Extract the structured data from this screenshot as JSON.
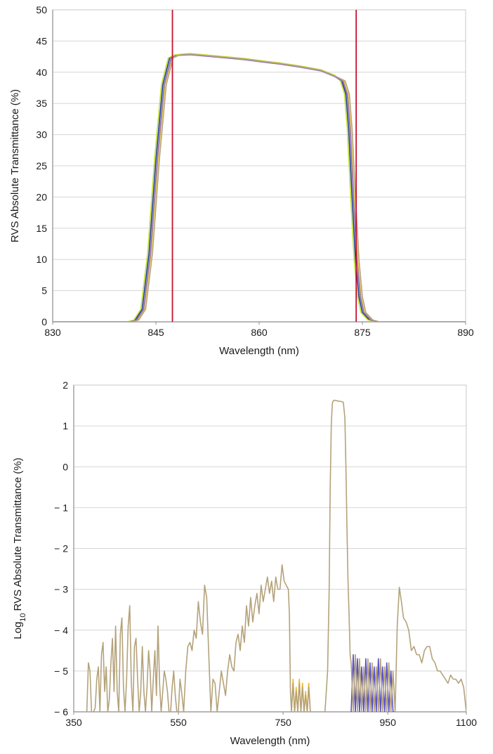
{
  "chart_data": [
    {
      "type": "line",
      "xlabel": "Wavelength (nm)",
      "ylabel": "RVS Absolute Transmittance (%)",
      "xlim": [
        830,
        890
      ],
      "ylim": [
        0,
        50
      ],
      "x_ticks": [
        830,
        845,
        860,
        875,
        890
      ],
      "y_ticks": [
        0,
        5,
        10,
        15,
        20,
        25,
        30,
        35,
        40,
        45,
        50
      ],
      "x_tick_labels": [
        "830",
        "845",
        "860",
        "875",
        "890"
      ],
      "y_tick_labels": [
        "0",
        "5",
        "10",
        "15",
        "20",
        "25",
        "30",
        "35",
        "40",
        "45",
        "50"
      ],
      "grid": "horizontal",
      "vertical_markers": [
        {
          "x": 847.4,
          "color": "#c8102e"
        },
        {
          "x": 874.1,
          "color": "#c8102e"
        }
      ],
      "series": [
        {
          "color": "#1f3f8f",
          "x": [
            830,
            841,
            842,
            843,
            844,
            845,
            846,
            847,
            848,
            850,
            852,
            855,
            858,
            860,
            863,
            866,
            869,
            871,
            872,
            872.6,
            873,
            873.5,
            874,
            874.5,
            875,
            876,
            877,
            890
          ],
          "values": [
            0,
            0,
            0.3,
            2,
            11,
            26,
            38,
            42.3,
            42.8,
            42.9,
            42.7,
            42.4,
            42.1,
            41.8,
            41.4,
            40.9,
            40.3,
            39.4,
            38.6,
            36.5,
            31,
            20,
            10,
            4,
            1.5,
            0.3,
            0,
            0
          ]
        },
        {
          "color": "#e8c02a",
          "x": [
            830,
            841,
            842.3,
            843.3,
            844.3,
            845.3,
            846.3,
            847.3,
            848.3,
            850,
            852,
            855,
            858,
            860,
            863,
            866,
            869,
            871,
            872.3,
            872.9,
            873.3,
            873.8,
            874.3,
            874.8,
            875.3,
            876.3,
            877.3,
            890
          ],
          "values": [
            0,
            0,
            0.3,
            2,
            11,
            26,
            38,
            42.3,
            42.8,
            42.9,
            42.7,
            42.4,
            42.1,
            41.8,
            41.4,
            40.9,
            40.3,
            39.4,
            38.6,
            36.5,
            31,
            20,
            10,
            4,
            1.5,
            0.3,
            0,
            0
          ]
        },
        {
          "color": "#c3e030",
          "x": [
            830,
            840.8,
            841.8,
            842.8,
            843.8,
            844.8,
            845.8,
            846.8,
            847.8,
            850,
            852,
            855,
            858,
            860,
            863,
            866,
            869,
            871,
            871.8,
            872.4,
            872.8,
            873.3,
            873.8,
            874.3,
            874.8,
            875.8,
            876.8,
            890
          ],
          "values": [
            0,
            0,
            0.3,
            2,
            11,
            26,
            38,
            42.3,
            42.8,
            43.0,
            42.8,
            42.5,
            42.2,
            41.9,
            41.5,
            41.0,
            40.4,
            39.5,
            38.6,
            36.5,
            31,
            20,
            10,
            4,
            1.5,
            0.3,
            0,
            0
          ]
        },
        {
          "color": "#8e6cc0",
          "x": [
            830,
            841.2,
            842.2,
            843.2,
            844.2,
            845.2,
            846.2,
            847.2,
            848.2,
            850,
            852,
            855,
            858,
            860,
            863,
            866,
            869,
            871,
            872.2,
            872.8,
            873.2,
            873.7,
            874.2,
            874.7,
            875.2,
            876.2,
            877.2,
            890
          ],
          "values": [
            0,
            0,
            0.3,
            2,
            11,
            26,
            38,
            42.2,
            42.7,
            42.8,
            42.6,
            42.3,
            42.0,
            41.7,
            41.3,
            40.8,
            40.2,
            39.3,
            38.5,
            36.4,
            31,
            20,
            10,
            4,
            1.5,
            0.3,
            0,
            0
          ]
        },
        {
          "color": "#b4a27a",
          "x": [
            830,
            841.5,
            842.5,
            843.5,
            844.5,
            845.5,
            846.5,
            847.5,
            848.5,
            850,
            852,
            855,
            858,
            860,
            863,
            866,
            869,
            871,
            872.5,
            873.1,
            873.5,
            874.0,
            874.5,
            875.0,
            875.5,
            876.5,
            877.5,
            890
          ],
          "values": [
            0,
            0,
            0.3,
            2,
            11,
            26,
            38,
            42.3,
            42.8,
            42.9,
            42.7,
            42.4,
            42.1,
            41.8,
            41.4,
            40.9,
            40.3,
            39.4,
            38.6,
            36.5,
            31,
            20,
            10,
            4,
            1.5,
            0.3,
            0,
            0
          ]
        }
      ]
    },
    {
      "type": "line",
      "xlabel": "Wavelength (nm)",
      "ylabel_main": "RVS Absolute Transmittance (%)",
      "ylabel_prefix": "Log",
      "ylabel_subscript": "10",
      "xlim": [
        350,
        1100
      ],
      "ylim": [
        -6,
        2
      ],
      "x_ticks": [
        350,
        550,
        750,
        950,
        1100
      ],
      "y_ticks": [
        -6,
        -5,
        -4,
        -3,
        -2,
        -1,
        0,
        1,
        2
      ],
      "x_tick_labels": [
        "350",
        "550",
        "750",
        "950",
        "1100"
      ],
      "y_tick_labels": [
        "− 6",
        "− 5",
        "− 4",
        "− 3",
        "− 2",
        "− 1",
        "0",
        "1",
        "2"
      ],
      "grid": "horizontal",
      "series": [
        {
          "color": "#5a52c8",
          "x": [
            880,
            884,
            888,
            892,
            896,
            900,
            904,
            908,
            912,
            916,
            920,
            924,
            928,
            932,
            936,
            940,
            944,
            948,
            952,
            956,
            960,
            964
          ],
          "values": [
            -6,
            -4.6,
            -6,
            -4.7,
            -6,
            -4.9,
            -6,
            -4.7,
            -6,
            -4.8,
            -6,
            -4.9,
            -6,
            -4.7,
            -6,
            -4.9,
            -6,
            -4.8,
            -6,
            -5.0,
            -6,
            -6
          ]
        },
        {
          "color": "#e8b82a",
          "x": [
            766,
            769,
            772,
            775,
            778,
            781,
            784,
            787,
            790,
            793,
            796,
            799,
            802
          ],
          "values": [
            -6,
            -5.2,
            -6,
            -5.4,
            -6,
            -5.2,
            -6,
            -5.3,
            -6,
            -5.5,
            -6,
            -5.3,
            -6
          ]
        },
        {
          "color": "#b4a27a",
          "x": [
            375,
            378,
            381,
            384,
            388,
            391,
            394,
            397,
            400,
            403,
            406,
            409,
            412,
            415,
            418,
            421,
            424,
            427,
            430,
            433,
            436,
            439,
            442,
            445,
            448,
            451,
            454,
            457,
            460,
            463,
            466,
            469,
            472,
            475,
            478,
            481,
            484,
            487,
            490,
            493,
            496,
            499,
            502,
            505,
            508,
            511,
            514,
            517,
            520,
            523,
            526,
            529,
            532,
            535,
            538,
            541,
            544,
            547,
            550,
            553,
            556,
            560,
            564,
            568,
            572,
            576,
            580,
            584,
            588,
            592,
            596,
            600,
            604,
            608,
            612,
            616,
            620,
            624,
            628,
            632,
            636,
            640,
            644,
            648,
            652,
            656,
            660,
            664,
            668,
            672,
            676,
            680,
            684,
            688,
            692,
            696,
            700,
            704,
            708,
            712,
            716,
            720,
            724,
            728,
            732,
            736,
            740,
            744,
            748,
            752,
            756,
            760,
            762,
            764,
            766,
            769,
            772,
            775,
            778,
            781,
            784,
            787,
            790,
            793,
            796,
            799,
            802,
            805,
            810,
            815,
            820,
            825,
            830,
            835,
            838,
            840,
            842,
            844,
            846,
            848,
            851,
            855,
            860,
            865,
            868,
            870,
            872,
            874,
            876,
            878,
            880,
            884,
            888,
            892,
            896,
            900,
            904,
            908,
            912,
            916,
            920,
            924,
            928,
            932,
            936,
            940,
            944,
            948,
            952,
            956,
            960,
            964,
            968,
            972,
            976,
            980,
            985,
            990,
            995,
            1000,
            1005,
            1010,
            1015,
            1020,
            1025,
            1030,
            1035,
            1040,
            1045,
            1050,
            1055,
            1060,
            1065,
            1070,
            1075,
            1080,
            1085,
            1090,
            1095,
            1100
          ],
          "values": [
            -6,
            -4.8,
            -5.0,
            -6,
            -6,
            -5.9,
            -5.2,
            -4.9,
            -6,
            -4.6,
            -4.3,
            -5.5,
            -4.9,
            -6,
            -5.7,
            -4.8,
            -4.2,
            -5.5,
            -3.9,
            -5.5,
            -6,
            -4.1,
            -3.7,
            -5.4,
            -6,
            -5.2,
            -3.9,
            -3.4,
            -5.3,
            -6,
            -4.4,
            -4.2,
            -5.2,
            -6,
            -5.5,
            -4.4,
            -5.5,
            -6,
            -5.4,
            -4.5,
            -5.0,
            -6,
            -5.2,
            -4.5,
            -5.6,
            -3.9,
            -5.3,
            -6,
            -5.5,
            -5.0,
            -5.2,
            -5.5,
            -6,
            -6,
            -5.4,
            -5.0,
            -5.6,
            -6,
            -6,
            -5.2,
            -5.5,
            -6,
            -5.0,
            -4.4,
            -4.3,
            -4.5,
            -4.0,
            -4.2,
            -3.3,
            -3.8,
            -4.1,
            -2.9,
            -3.2,
            -4.6,
            -6,
            -5.2,
            -5.3,
            -6,
            -5.5,
            -5.0,
            -5.3,
            -5.6,
            -5.0,
            -4.6,
            -4.9,
            -5.0,
            -4.3,
            -4.1,
            -4.5,
            -3.9,
            -4.3,
            -3.4,
            -3.9,
            -3.2,
            -3.8,
            -3.4,
            -3.1,
            -3.6,
            -2.9,
            -3.3,
            -3.0,
            -2.7,
            -3.1,
            -2.8,
            -3.3,
            -2.7,
            -3.0,
            -3.0,
            -2.4,
            -2.8,
            -2.9,
            -3.0,
            -3.6,
            -5.5,
            -6,
            -5.3,
            -6,
            -5.5,
            -6,
            -5.3,
            -6,
            -5.4,
            -6,
            -5.6,
            -6,
            -5.4,
            -6,
            -6,
            -6,
            -6,
            -6,
            -6,
            -6,
            -5.0,
            -3.0,
            -0.5,
            1.0,
            1.55,
            1.62,
            1.63,
            1.62,
            1.61,
            1.6,
            1.58,
            1.2,
            0.0,
            -1.5,
            -2.8,
            -3.6,
            -4.6,
            -4.8,
            -6,
            -4.6,
            -6,
            -4.7,
            -6,
            -4.9,
            -6,
            -4.7,
            -6,
            -4.8,
            -6,
            -4.9,
            -6,
            -4.7,
            -6,
            -4.9,
            -6,
            -4.8,
            -6,
            -5.0,
            -6,
            -3.9,
            -2.95,
            -3.3,
            -3.7,
            -3.8,
            -4.0,
            -4.5,
            -4.4,
            -4.6,
            -4.6,
            -4.8,
            -4.5,
            -4.4,
            -4.4,
            -4.7,
            -4.8,
            -5.0,
            -5.0,
            -5.1,
            -5.2,
            -5.3,
            -5.1,
            -5.2,
            -5.2,
            -5.3,
            -5.2,
            -5.4,
            -6
          ]
        }
      ]
    }
  ]
}
